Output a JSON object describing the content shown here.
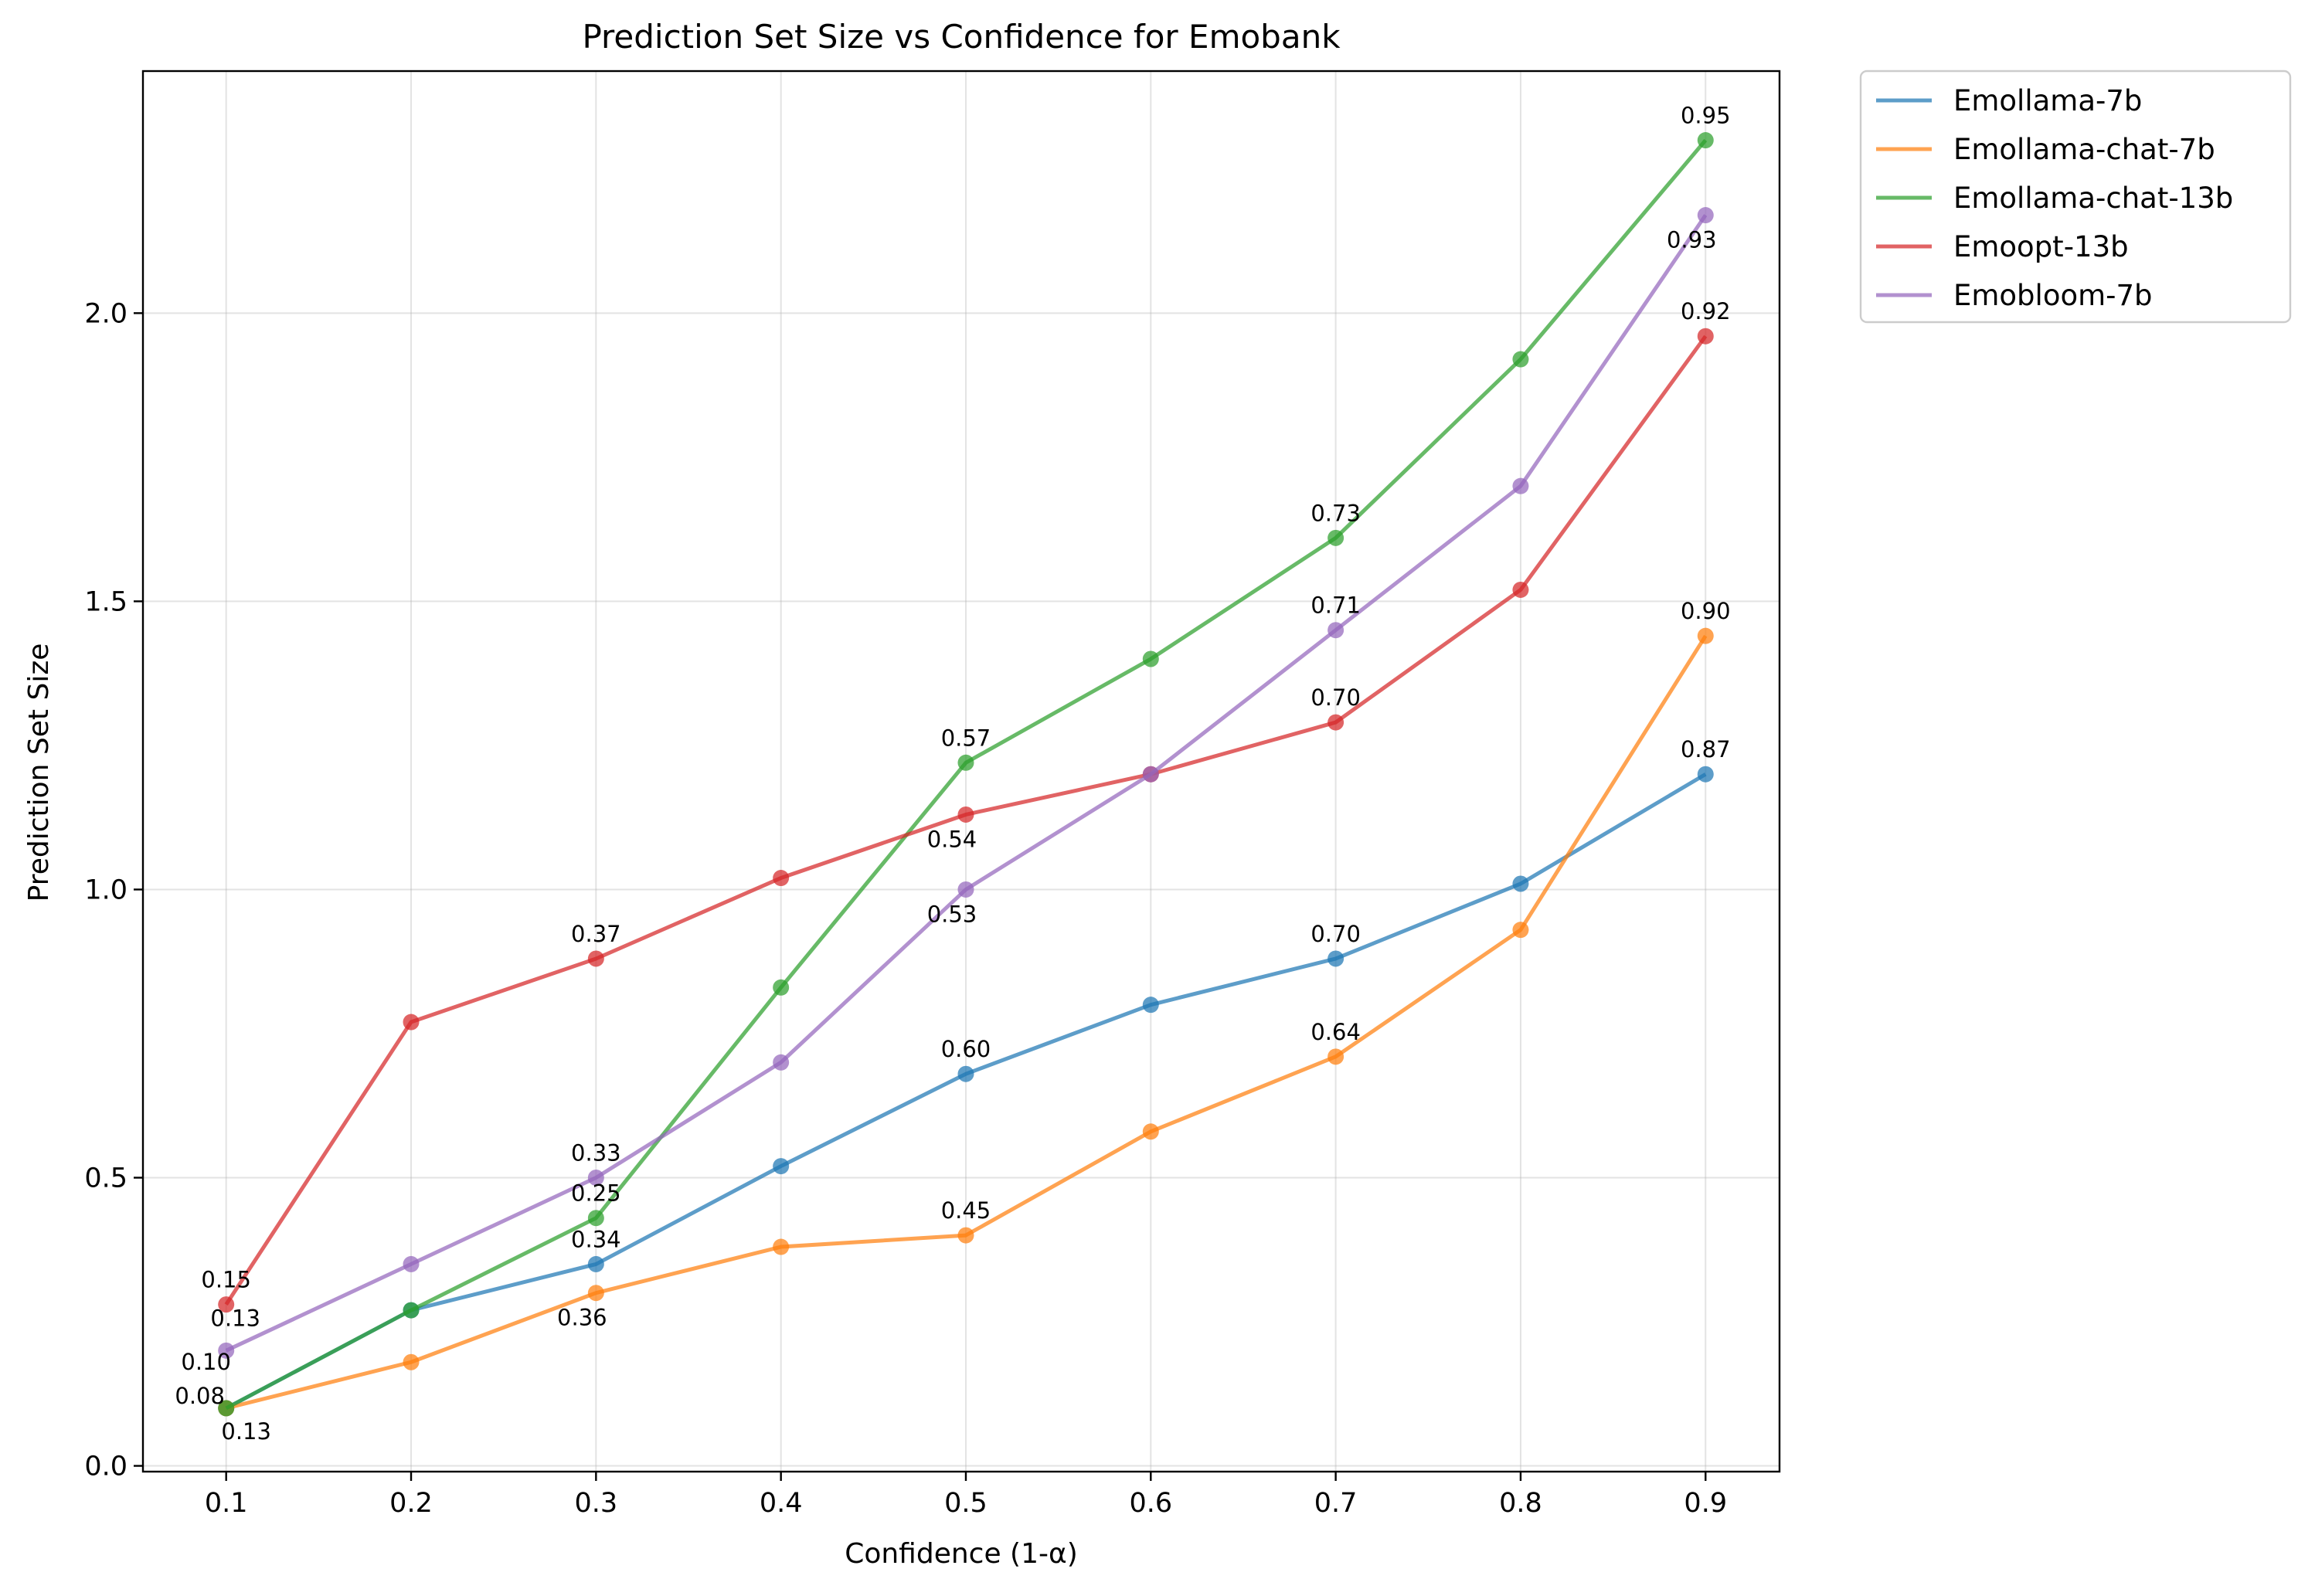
{
  "chart_data": {
    "type": "line",
    "title": "Prediction Set Size vs Confidence for Emobank",
    "xlabel": "Confidence (1-α)",
    "ylabel": "Prediction Set Size",
    "x": [
      0.1,
      0.2,
      0.3,
      0.4,
      0.5,
      0.6,
      0.7,
      0.8,
      0.9
    ],
    "x_tick_labels": [
      "0.1",
      "0.2",
      "0.3",
      "0.4",
      "0.5",
      "0.6",
      "0.7",
      "0.8",
      "0.9"
    ],
    "y_ticks": [
      0.0,
      0.5,
      1.0,
      1.5,
      2.0
    ],
    "y_tick_labels": [
      "0.0",
      "0.5",
      "1.0",
      "1.5",
      "2.0"
    ],
    "xlim": [
      0.055,
      0.94
    ],
    "ylim": [
      -0.01,
      2.42
    ],
    "grid": true,
    "legend_position": "outside-top-right",
    "series": [
      {
        "name": "Emollama-7b",
        "color": "#1f77b4",
        "values": [
          0.1,
          0.27,
          0.35,
          0.52,
          0.68,
          0.8,
          0.88,
          1.01,
          1.2
        ]
      },
      {
        "name": "Emollama-chat-7b",
        "color": "#ff7f0e",
        "values": [
          0.1,
          0.18,
          0.3,
          0.38,
          0.4,
          0.58,
          0.71,
          0.93,
          1.44
        ]
      },
      {
        "name": "Emollama-chat-13b",
        "color": "#2ca02c",
        "values": [
          0.1,
          0.27,
          0.43,
          0.83,
          1.22,
          1.4,
          1.61,
          1.92,
          2.3
        ]
      },
      {
        "name": "Emoopt-13b",
        "color": "#d62728",
        "values": [
          0.28,
          0.77,
          0.88,
          1.02,
          1.13,
          1.2,
          1.29,
          1.52,
          1.96
        ]
      },
      {
        "name": "Emobloom-7b",
        "color": "#9467bd",
        "values": [
          0.2,
          0.35,
          0.5,
          0.7,
          1.0,
          1.2,
          1.45,
          1.7,
          2.17
        ]
      }
    ],
    "annotations": [
      {
        "text": "0.10",
        "x": 0.1,
        "series": 0,
        "place": "above-left"
      },
      {
        "text": "0.34",
        "x": 0.3,
        "series": 0,
        "place": "above"
      },
      {
        "text": "0.60",
        "x": 0.5,
        "series": 0,
        "place": "above"
      },
      {
        "text": "0.70",
        "x": 0.7,
        "series": 0,
        "place": "above"
      },
      {
        "text": "0.87",
        "x": 0.9,
        "series": 0,
        "place": "above"
      },
      {
        "text": "0.13",
        "x": 0.1,
        "series": 1,
        "place": "below-right"
      },
      {
        "text": "0.36",
        "x": 0.3,
        "series": 1,
        "place": "below-left"
      },
      {
        "text": "0.45",
        "x": 0.5,
        "series": 1,
        "place": "above"
      },
      {
        "text": "0.64",
        "x": 0.7,
        "series": 1,
        "place": "above"
      },
      {
        "text": "0.90",
        "x": 0.9,
        "series": 1,
        "place": "above"
      },
      {
        "text": "0.08",
        "x": 0.1,
        "series": 2,
        "place": "left"
      },
      {
        "text": "0.25",
        "x": 0.3,
        "series": 2,
        "place": "above"
      },
      {
        "text": "0.57",
        "x": 0.5,
        "series": 2,
        "place": "above"
      },
      {
        "text": "0.73",
        "x": 0.7,
        "series": 2,
        "place": "above"
      },
      {
        "text": "0.95",
        "x": 0.9,
        "series": 2,
        "place": "above"
      },
      {
        "text": "0.15",
        "x": 0.1,
        "series": 3,
        "place": "above"
      },
      {
        "text": "0.37",
        "x": 0.3,
        "series": 3,
        "place": "above"
      },
      {
        "text": "0.54",
        "x": 0.5,
        "series": 3,
        "place": "below-left"
      },
      {
        "text": "0.70",
        "x": 0.7,
        "series": 3,
        "place": "above"
      },
      {
        "text": "0.92",
        "x": 0.9,
        "series": 3,
        "place": "above"
      },
      {
        "text": "0.13",
        "x": 0.1,
        "series": 4,
        "place": "above-right"
      },
      {
        "text": "0.33",
        "x": 0.3,
        "series": 4,
        "place": "above"
      },
      {
        "text": "0.53",
        "x": 0.5,
        "series": 4,
        "place": "below-left"
      },
      {
        "text": "0.71",
        "x": 0.7,
        "series": 4,
        "place": "above"
      },
      {
        "text": "0.93",
        "x": 0.9,
        "series": 4,
        "place": "below-left"
      }
    ]
  }
}
